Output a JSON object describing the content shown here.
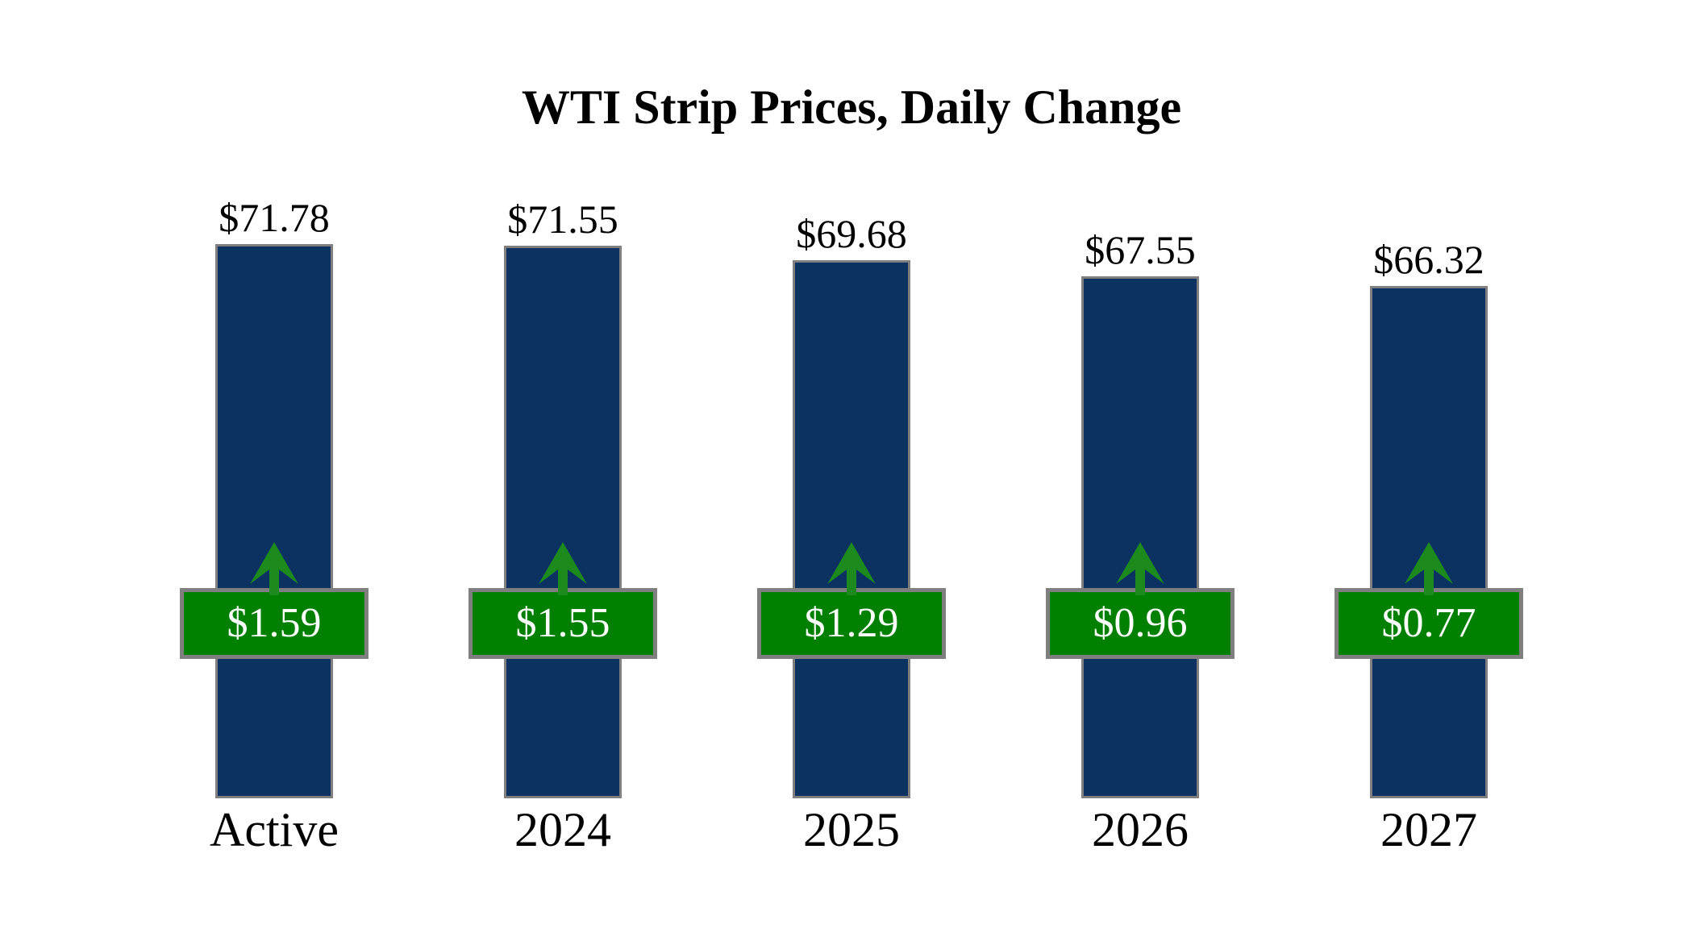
{
  "chart_data": {
    "type": "bar",
    "title": "WTI Strip Prices, Daily Change",
    "categories": [
      "Active",
      "2024",
      "2025",
      "2026",
      "2027"
    ],
    "series": [
      {
        "name": "Strip Price",
        "values": [
          71.78,
          71.55,
          69.68,
          67.55,
          66.32
        ],
        "labels": [
          "$71.78",
          "$71.55",
          "$69.68",
          "$67.55",
          "$66.32"
        ]
      },
      {
        "name": "Daily Change",
        "values": [
          1.59,
          1.55,
          1.29,
          0.96,
          0.77
        ],
        "labels": [
          "$1.59",
          "$1.55",
          "$1.29",
          "$0.96",
          "$0.77"
        ],
        "direction": "up"
      }
    ],
    "ylim": [
      0,
      75
    ],
    "grid": false,
    "legend": "none",
    "colors": {
      "bar_fill": "#0b3261",
      "bar_border": "#7f7f7f",
      "badge_fill": "#008000",
      "badge_border": "#7f7f7f",
      "badge_text": "#ffffff",
      "arrow": "#1d8a1d",
      "value_text": "#000000",
      "title_text": "#000000"
    }
  }
}
